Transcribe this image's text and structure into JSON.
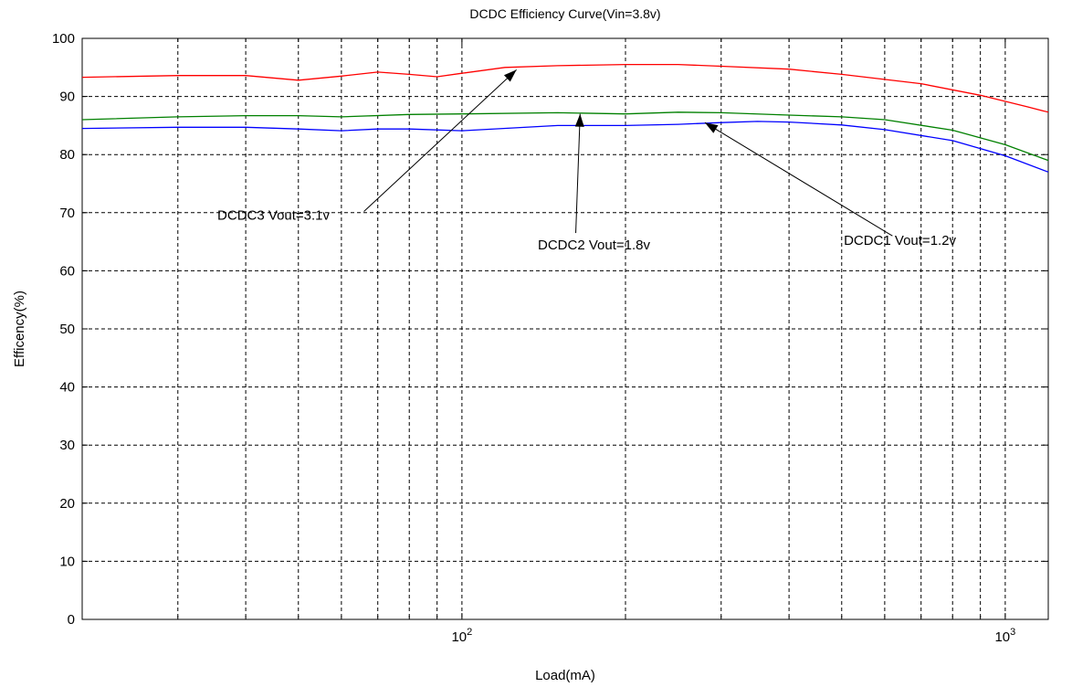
{
  "chart_data": {
    "type": "line",
    "title": "DCDC Efficiency Curve(Vin=3.8v)",
    "xlabel": "Load(mA)",
    "ylabel": "Efficency(%)",
    "x_scale": "log",
    "xlim": [
      20,
      1200
    ],
    "ylim": [
      0,
      100
    ],
    "grid": true,
    "x_tick_labels": [
      {
        "value": 100,
        "base": "10",
        "exp": "2"
      },
      {
        "value": 1000,
        "base": "10",
        "exp": "3"
      }
    ],
    "y_ticks": [
      0,
      10,
      20,
      30,
      40,
      50,
      60,
      70,
      80,
      90,
      100
    ],
    "y_tick_labels": [
      "0",
      "10",
      "20",
      "30",
      "40",
      "50",
      "60",
      "70",
      "80",
      "90",
      "100"
    ],
    "series": [
      {
        "color": "#ff0000",
        "points": [
          [
            20,
            93.3
          ],
          [
            30,
            93.6
          ],
          [
            40,
            93.6
          ],
          [
            50,
            92.8
          ],
          [
            60,
            93.5
          ],
          [
            70,
            94.2
          ],
          [
            80,
            93.8
          ],
          [
            90,
            93.4
          ],
          [
            100,
            94.0
          ],
          [
            120,
            95.0
          ],
          [
            150,
            95.3
          ],
          [
            200,
            95.5
          ],
          [
            250,
            95.5
          ],
          [
            300,
            95.2
          ],
          [
            400,
            94.7
          ],
          [
            500,
            93.8
          ],
          [
            700,
            92.2
          ],
          [
            900,
            90.2
          ],
          [
            1100,
            88.2
          ],
          [
            1200,
            87.3
          ]
        ]
      },
      {
        "color": "#008000",
        "points": [
          [
            20,
            86.0
          ],
          [
            30,
            86.5
          ],
          [
            40,
            86.7
          ],
          [
            50,
            86.7
          ],
          [
            60,
            86.5
          ],
          [
            80,
            86.9
          ],
          [
            100,
            87.0
          ],
          [
            150,
            87.2
          ],
          [
            200,
            87.0
          ],
          [
            250,
            87.3
          ],
          [
            300,
            87.2
          ],
          [
            400,
            86.8
          ],
          [
            500,
            86.5
          ],
          [
            600,
            86.0
          ],
          [
            800,
            84.2
          ],
          [
            1000,
            81.7
          ],
          [
            1200,
            79.0
          ]
        ]
      },
      {
        "color": "#0000ff",
        "points": [
          [
            20,
            84.5
          ],
          [
            30,
            84.7
          ],
          [
            40,
            84.7
          ],
          [
            50,
            84.4
          ],
          [
            60,
            84.1
          ],
          [
            70,
            84.4
          ],
          [
            80,
            84.4
          ],
          [
            100,
            84.1
          ],
          [
            150,
            85.0
          ],
          [
            200,
            85.0
          ],
          [
            250,
            85.2
          ],
          [
            300,
            85.5
          ],
          [
            350,
            85.7
          ],
          [
            400,
            85.6
          ],
          [
            500,
            85.1
          ],
          [
            600,
            84.3
          ],
          [
            800,
            82.4
          ],
          [
            1000,
            79.8
          ],
          [
            1200,
            77.0
          ]
        ]
      }
    ],
    "annotations": [
      {
        "text": "DCDC3  Vout=3.1v",
        "label_at": [
          45,
          68.8
        ],
        "arrow_from": [
          66,
          70.2
        ],
        "arrow_to": [
          126,
          94.6
        ]
      },
      {
        "text": "DCDC2 Vout=1.8v",
        "label_at": [
          175,
          63.7
        ],
        "arrow_from": [
          162,
          66.5
        ],
        "arrow_to": [
          165,
          87.0
        ]
      },
      {
        "text": "DCDC1 Vout=1.2v",
        "label_at": [
          640,
          64.5
        ],
        "arrow_from": [
          620,
          66.0
        ],
        "arrow_to": [
          280,
          85.5
        ]
      }
    ]
  }
}
